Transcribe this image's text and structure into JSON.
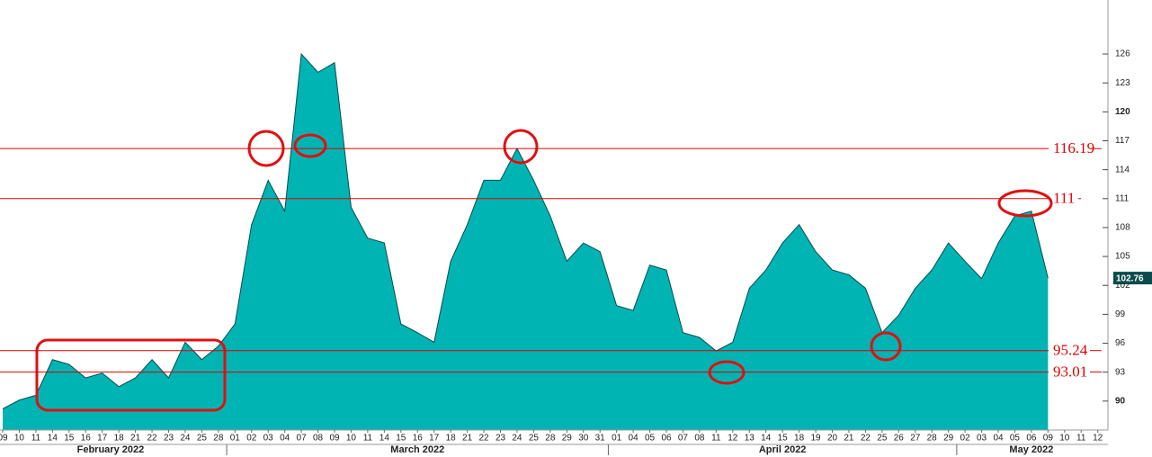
{
  "chart_data": {
    "type": "area",
    "color": "#00b4b4",
    "line_color": "#0b4b4b",
    "level_color": "#e00000",
    "categories": [
      "09",
      "10",
      "11",
      "14",
      "15",
      "16",
      "17",
      "18",
      "21",
      "22",
      "23",
      "24",
      "25",
      "28",
      "01",
      "02",
      "03",
      "04",
      "07",
      "08",
      "09",
      "10",
      "11",
      "14",
      "15",
      "16",
      "17",
      "18",
      "21",
      "22",
      "23",
      "24",
      "25",
      "28",
      "29",
      "30",
      "31",
      "01",
      "04",
      "05",
      "06",
      "07",
      "08",
      "11",
      "12",
      "13",
      "14",
      "15",
      "18",
      "19",
      "20",
      "21",
      "22",
      "25",
      "26",
      "27",
      "28",
      "29",
      "02",
      "03",
      "04",
      "05",
      "06",
      "09",
      "10",
      "11",
      "12"
    ],
    "months": [
      "February 2022",
      "March 2022",
      "April 2022",
      "May 2022"
    ],
    "values": [
      89.2,
      90.1,
      90.6,
      94.3,
      93.8,
      92.4,
      92.9,
      91.5,
      92.4,
      94.3,
      92.4,
      96.1,
      94.3,
      95.7,
      98.0,
      108.3,
      112.9,
      109.7,
      126.0,
      124.1,
      125.1,
      110.1,
      106.9,
      106.4,
      98.0,
      97.1,
      96.1,
      104.5,
      108.3,
      112.9,
      112.9,
      116.2,
      112.9,
      109.2,
      104.5,
      106.4,
      105.5,
      99.9,
      99.4,
      104.1,
      103.6,
      97.1,
      96.6,
      95.2,
      96.1,
      101.7,
      103.6,
      106.4,
      108.3,
      105.5,
      103.6,
      103.1,
      101.7,
      97.1,
      98.9,
      101.7,
      103.6,
      106.4,
      104.5,
      102.7,
      106.4,
      109.2,
      109.7,
      102.76,
      null,
      null,
      null
    ],
    "last_value": 102.76,
    "levels": [
      116.19,
      111,
      95.24,
      93.01
    ],
    "ylim": [
      87,
      131.6
    ],
    "yticks": [
      90,
      93,
      96,
      99,
      102,
      105,
      108,
      111,
      114,
      117,
      120,
      123,
      126
    ]
  }
}
